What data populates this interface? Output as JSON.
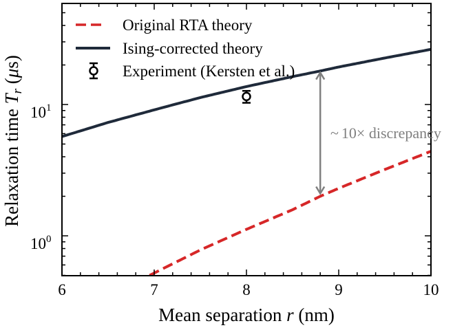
{
  "chart_data": {
    "type": "line",
    "title": "",
    "xlabel_prefix": "Mean separation ",
    "xlabel_var": "r",
    "xlabel_unit": " (nm)",
    "ylabel_prefix": "Relaxation time ",
    "ylabel_var": "T",
    "ylabel_sub": "r",
    "ylabel_unit_open": " (",
    "ylabel_unit_mu": "μ",
    "ylabel_unit_rest": "s)",
    "xlim": [
      6,
      10
    ],
    "ylim": [
      0.5,
      60
    ],
    "yscale": "log",
    "x_ticks": [
      6,
      7,
      8,
      9,
      10
    ],
    "x_tick_labels": [
      "6",
      "7",
      "8",
      "9",
      "10"
    ],
    "y_ticks": [
      1,
      10
    ],
    "y_tick_labels": [
      {
        "base": "10",
        "exp": "0"
      },
      {
        "base": "10",
        "exp": "1"
      }
    ],
    "series": [
      {
        "name": "Original RTA theory",
        "style": "dashed",
        "color": "#d62728",
        "x": [
          6.95,
          7.5,
          8.0,
          8.5,
          8.8,
          9.0,
          9.5,
          10.0
        ],
        "y": [
          0.5,
          0.78,
          1.12,
          1.58,
          2.0,
          2.3,
          3.2,
          4.4
        ]
      },
      {
        "name": "Ising-corrected theory",
        "style": "solid",
        "color": "#1f2a3a",
        "x": [
          6.0,
          6.5,
          7.0,
          7.5,
          8.0,
          8.5,
          8.8,
          9.0,
          9.5,
          10.0
        ],
        "y": [
          5.7,
          7.3,
          9.1,
          11.3,
          13.7,
          16.3,
          18.0,
          19.3,
          22.6,
          26.3
        ]
      },
      {
        "name": "Experiment (Kersten et al.)",
        "style": "errorbar",
        "color": "#000000",
        "x": [
          8.0
        ],
        "y": [
          11.5
        ],
        "yerr": [
          1.2
        ]
      }
    ],
    "annotation": {
      "prefix": "~",
      "value": "10",
      "times": "×",
      "text": " discrepancy",
      "arrow_x": 8.8,
      "arrow_y_top": 17.5,
      "arrow_y_bottom": 2.1
    },
    "legend_position": "top-left",
    "grid": false
  }
}
